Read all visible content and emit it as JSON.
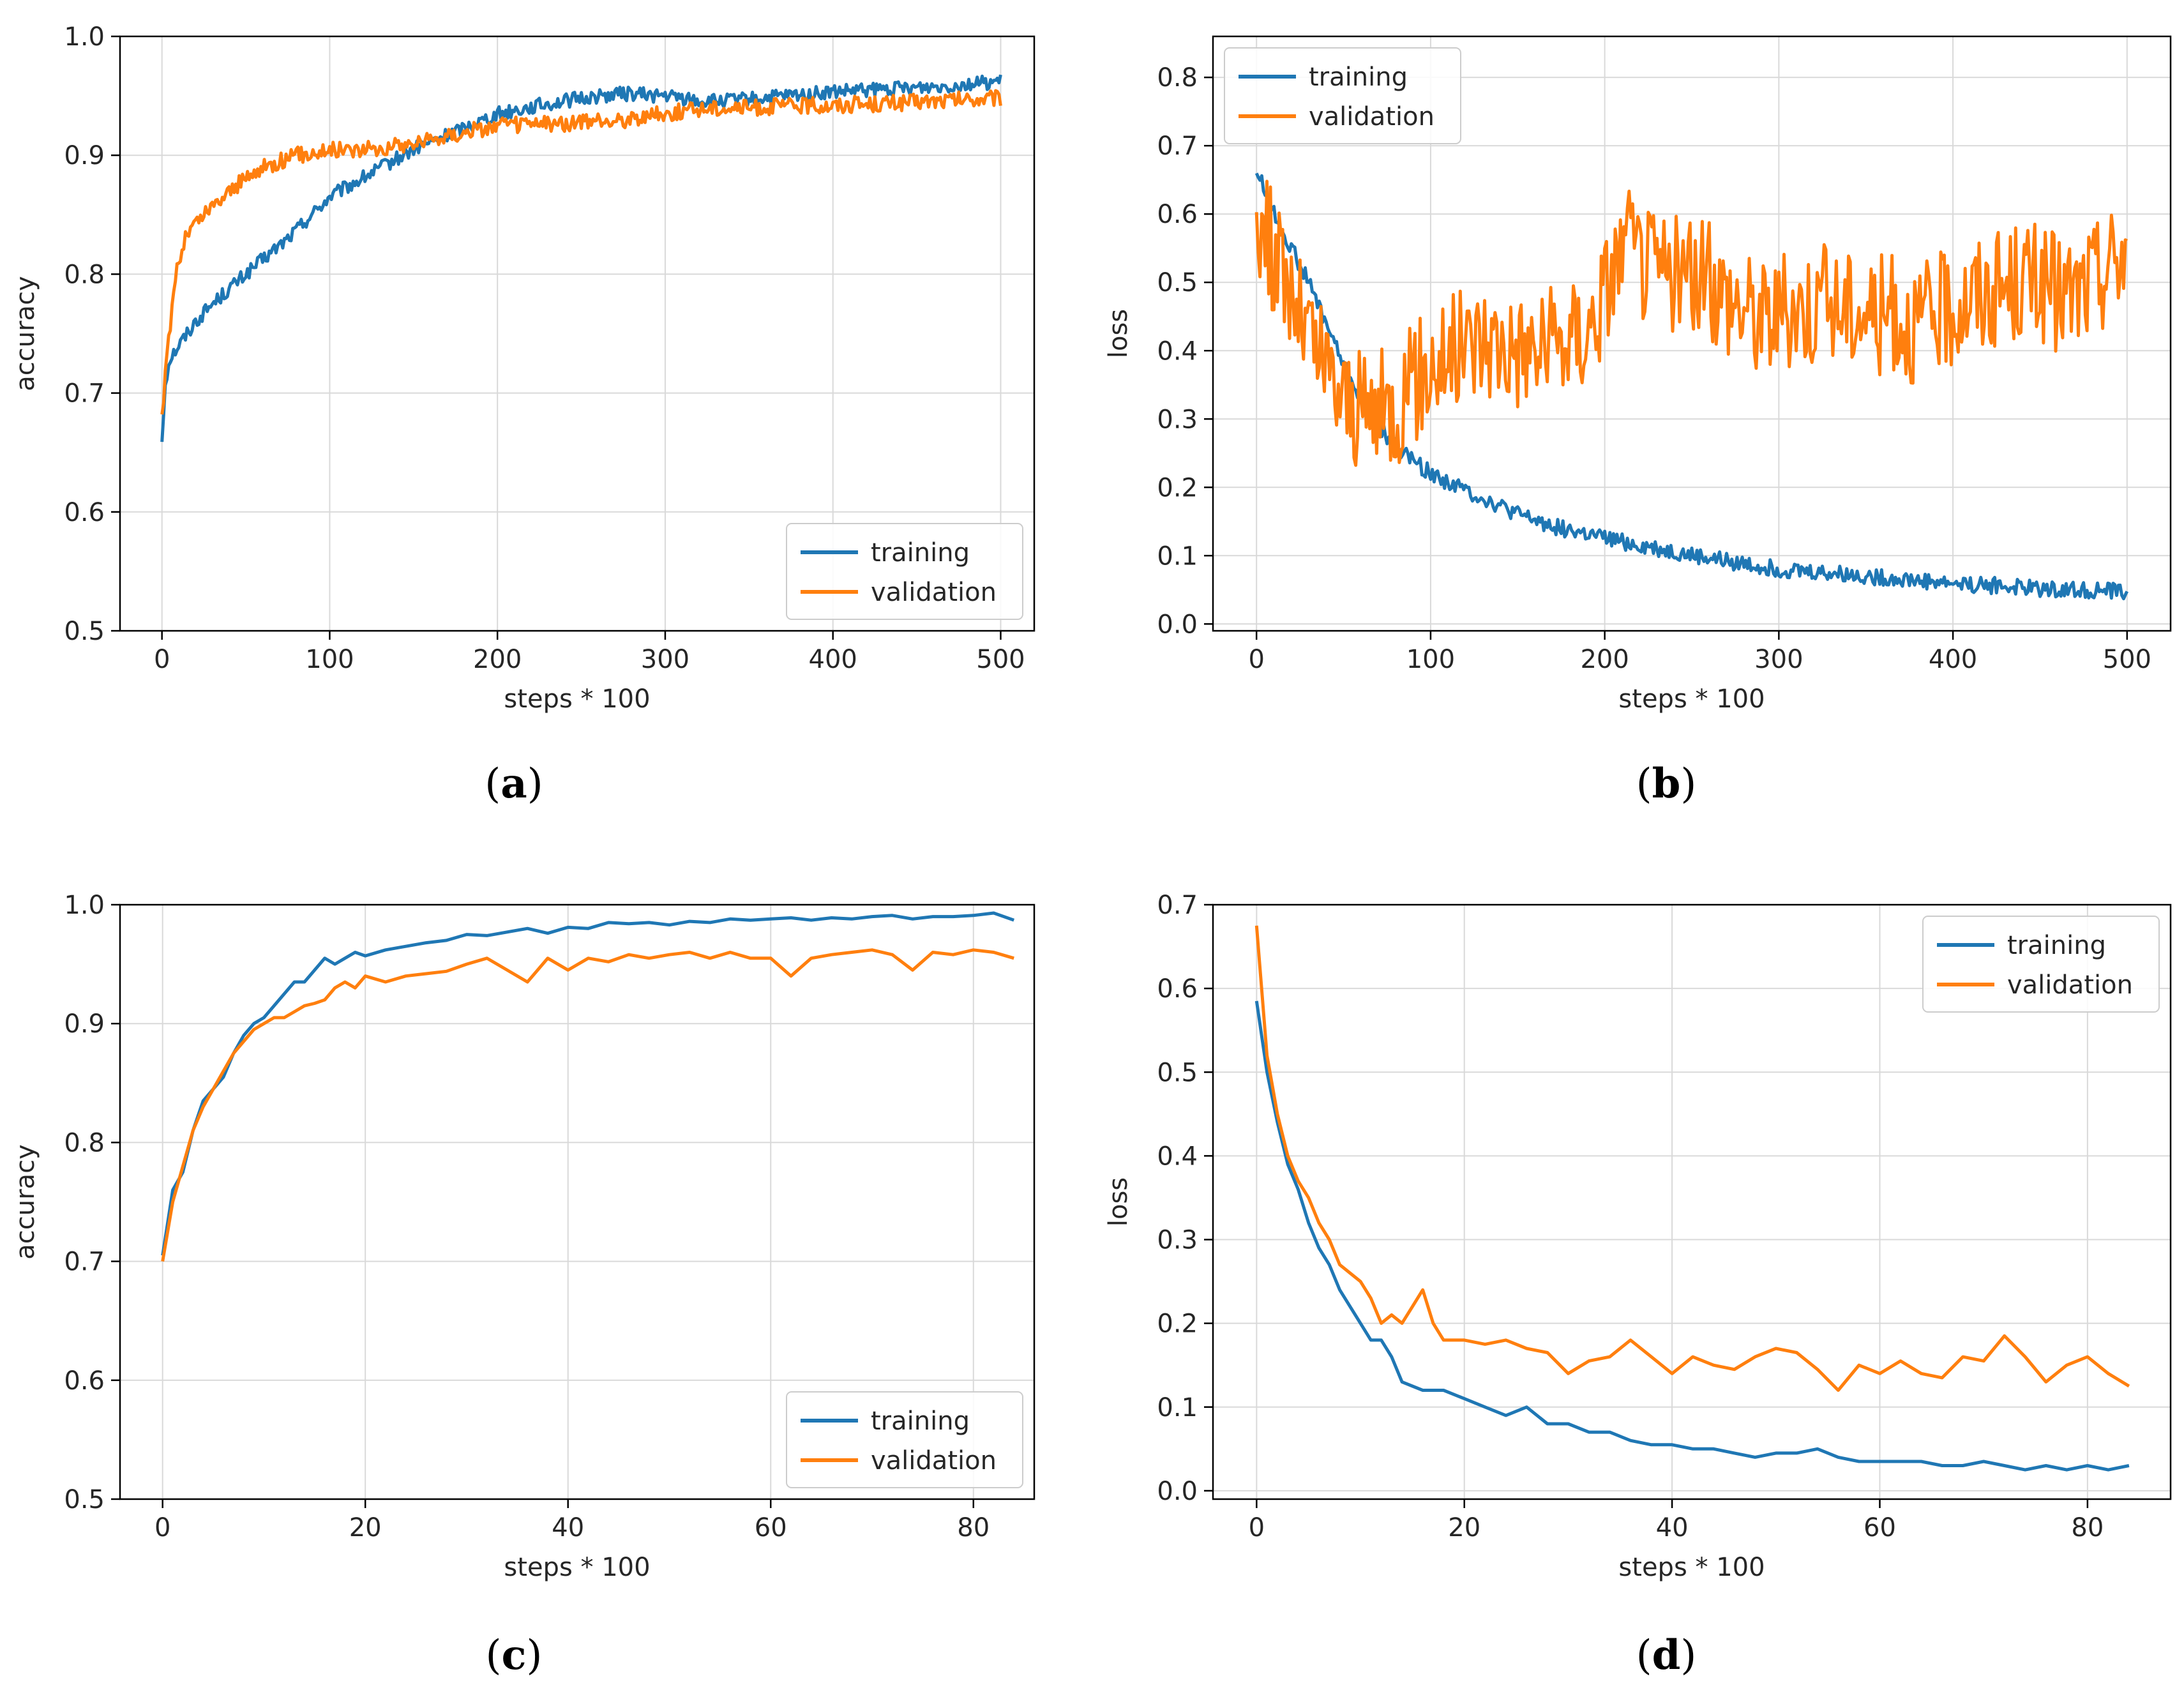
{
  "legend_labels": {
    "training": "training",
    "validation": "validation"
  },
  "colors": {
    "training": "#1f77b4",
    "validation": "#ff7f0e",
    "grid": "#d9d9d9",
    "axis": "#000000",
    "legend_border": "#cccccc"
  },
  "captions": {
    "a": "a",
    "b": "b",
    "c": "c",
    "d": "d"
  },
  "chart_data": [
    {
      "id": "a",
      "type": "line",
      "xlabel": "steps * 100",
      "ylabel": "accuracy",
      "xlim": [
        -25,
        520
      ],
      "ylim": [
        0.5,
        1.0
      ],
      "xticks": [
        0,
        100,
        200,
        300,
        400,
        500
      ],
      "yticks": [
        0.5,
        0.6,
        0.7,
        0.8,
        0.9,
        1.0
      ],
      "legend": "bottom-right",
      "series": [
        {
          "name": "training",
          "noise": 0.006,
          "x": [
            0,
            2,
            5,
            10,
            20,
            30,
            50,
            75,
            100,
            125,
            150,
            175,
            200,
            225,
            250,
            275,
            300,
            325,
            350,
            375,
            400,
            450,
            500
          ],
          "y": [
            0.66,
            0.71,
            0.73,
            0.74,
            0.76,
            0.775,
            0.8,
            0.83,
            0.865,
            0.885,
            0.905,
            0.92,
            0.935,
            0.942,
            0.948,
            0.952,
            0.95,
            0.945,
            0.947,
            0.95,
            0.953,
            0.957,
            0.962
          ]
        },
        {
          "name": "validation",
          "noise": 0.007,
          "x": [
            0,
            3,
            8,
            15,
            25,
            40,
            60,
            80,
            100,
            125,
            150,
            175,
            200,
            225,
            250,
            275,
            300,
            325,
            350,
            375,
            400,
            450,
            500
          ],
          "y": [
            0.68,
            0.73,
            0.8,
            0.835,
            0.85,
            0.87,
            0.89,
            0.9,
            0.905,
            0.905,
            0.91,
            0.918,
            0.925,
            0.926,
            0.927,
            0.93,
            0.935,
            0.94,
            0.94,
            0.942,
            0.942,
            0.945,
            0.948
          ]
        }
      ]
    },
    {
      "id": "b",
      "type": "line",
      "xlabel": "steps * 100",
      "ylabel": "loss",
      "xlim": [
        -25,
        525
      ],
      "ylim": [
        -0.01,
        0.86
      ],
      "xticks": [
        0,
        100,
        200,
        300,
        400,
        500
      ],
      "yticks": [
        0.0,
        0.1,
        0.2,
        0.3,
        0.4,
        0.5,
        0.6,
        0.7,
        0.8
      ],
      "legend": "top-left",
      "series": [
        {
          "name": "training",
          "noise": 0.012,
          "x": [
            0,
            10,
            20,
            30,
            40,
            50,
            60,
            70,
            80,
            100,
            125,
            150,
            175,
            200,
            250,
            300,
            350,
            400,
            450,
            500
          ],
          "y": [
            0.665,
            0.6,
            0.55,
            0.5,
            0.44,
            0.38,
            0.33,
            0.29,
            0.26,
            0.22,
            0.19,
            0.16,
            0.14,
            0.125,
            0.1,
            0.08,
            0.07,
            0.06,
            0.052,
            0.048
          ]
        },
        {
          "name": "validation",
          "noise": 0.09,
          "x": [
            0,
            10,
            20,
            30,
            40,
            50,
            60,
            80,
            100,
            130,
            160,
            190,
            210,
            230,
            260,
            290,
            320,
            350,
            380,
            410,
            440,
            470,
            500
          ],
          "y": [
            0.6,
            0.54,
            0.48,
            0.42,
            0.37,
            0.33,
            0.31,
            0.32,
            0.38,
            0.42,
            0.4,
            0.43,
            0.55,
            0.52,
            0.5,
            0.45,
            0.47,
            0.46,
            0.44,
            0.48,
            0.5,
            0.48,
            0.55
          ]
        }
      ]
    },
    {
      "id": "c",
      "type": "line",
      "xlabel": "steps * 100",
      "ylabel": "accuracy",
      "xlim": [
        -4.2,
        86
      ],
      "ylim": [
        0.5,
        1.0
      ],
      "xticks": [
        0,
        20,
        40,
        60,
        80
      ],
      "yticks": [
        0.5,
        0.6,
        0.7,
        0.8,
        0.9,
        1.0
      ],
      "legend": "bottom-right",
      "series": [
        {
          "name": "training",
          "noise": 0.0,
          "x": [
            0,
            1,
            2,
            3,
            4,
            5,
            6,
            7,
            8,
            9,
            10,
            11,
            12,
            13,
            14,
            15,
            16,
            17,
            18,
            19,
            20,
            22,
            24,
            26,
            28,
            30,
            32,
            34,
            36,
            38,
            40,
            42,
            44,
            46,
            48,
            50,
            52,
            54,
            56,
            58,
            60,
            62,
            64,
            66,
            68,
            70,
            72,
            74,
            76,
            78,
            80,
            82,
            84
          ],
          "y": [
            0.705,
            0.76,
            0.775,
            0.81,
            0.835,
            0.845,
            0.855,
            0.875,
            0.89,
            0.9,
            0.905,
            0.915,
            0.925,
            0.935,
            0.935,
            0.945,
            0.955,
            0.95,
            0.955,
            0.96,
            0.957,
            0.962,
            0.965,
            0.968,
            0.97,
            0.975,
            0.974,
            0.977,
            0.98,
            0.976,
            0.981,
            0.98,
            0.985,
            0.984,
            0.985,
            0.983,
            0.986,
            0.985,
            0.988,
            0.987,
            0.988,
            0.989,
            0.987,
            0.989,
            0.988,
            0.99,
            0.991,
            0.988,
            0.99,
            0.99,
            0.991,
            0.993,
            0.987
          ]
        },
        {
          "name": "validation",
          "noise": 0.0,
          "x": [
            0,
            1,
            2,
            3,
            4,
            5,
            6,
            7,
            8,
            9,
            10,
            11,
            12,
            13,
            14,
            15,
            16,
            17,
            18,
            19,
            20,
            22,
            24,
            26,
            28,
            30,
            32,
            34,
            36,
            38,
            40,
            42,
            44,
            46,
            48,
            50,
            52,
            54,
            56,
            58,
            60,
            62,
            64,
            66,
            68,
            70,
            72,
            74,
            76,
            78,
            80,
            82,
            84
          ],
          "y": [
            0.7,
            0.75,
            0.78,
            0.81,
            0.83,
            0.845,
            0.86,
            0.875,
            0.885,
            0.895,
            0.9,
            0.905,
            0.905,
            0.91,
            0.915,
            0.917,
            0.92,
            0.93,
            0.935,
            0.93,
            0.94,
            0.935,
            0.94,
            0.942,
            0.944,
            0.95,
            0.955,
            0.945,
            0.935,
            0.955,
            0.945,
            0.955,
            0.952,
            0.958,
            0.955,
            0.958,
            0.96,
            0.955,
            0.96,
            0.955,
            0.955,
            0.94,
            0.955,
            0.958,
            0.96,
            0.962,
            0.958,
            0.945,
            0.96,
            0.958,
            0.962,
            0.96,
            0.955
          ]
        }
      ]
    },
    {
      "id": "d",
      "type": "line",
      "xlabel": "steps * 100",
      "ylabel": "loss",
      "xlim": [
        -4.2,
        88
      ],
      "ylim": [
        -0.01,
        0.7
      ],
      "xticks": [
        0,
        20,
        40,
        60,
        80
      ],
      "yticks": [
        0.0,
        0.1,
        0.2,
        0.3,
        0.4,
        0.5,
        0.6,
        0.7
      ],
      "legend": "top-right",
      "series": [
        {
          "name": "training",
          "noise": 0.0,
          "x": [
            0,
            1,
            2,
            3,
            4,
            5,
            6,
            7,
            8,
            9,
            10,
            11,
            12,
            13,
            14,
            15,
            16,
            18,
            20,
            22,
            24,
            26,
            28,
            30,
            32,
            34,
            36,
            38,
            40,
            42,
            44,
            46,
            48,
            50,
            52,
            54,
            56,
            58,
            60,
            62,
            64,
            66,
            68,
            70,
            72,
            74,
            76,
            78,
            80,
            82,
            84
          ],
          "y": [
            0.585,
            0.5,
            0.44,
            0.39,
            0.36,
            0.32,
            0.29,
            0.27,
            0.24,
            0.22,
            0.2,
            0.18,
            0.18,
            0.16,
            0.13,
            0.125,
            0.12,
            0.12,
            0.11,
            0.1,
            0.09,
            0.1,
            0.08,
            0.08,
            0.07,
            0.07,
            0.06,
            0.055,
            0.055,
            0.05,
            0.05,
            0.045,
            0.04,
            0.045,
            0.045,
            0.05,
            0.04,
            0.035,
            0.035,
            0.035,
            0.035,
            0.03,
            0.03,
            0.035,
            0.03,
            0.025,
            0.03,
            0.025,
            0.03,
            0.025,
            0.03
          ]
        },
        {
          "name": "validation",
          "noise": 0.0,
          "x": [
            0,
            1,
            2,
            3,
            4,
            5,
            6,
            7,
            8,
            9,
            10,
            11,
            12,
            13,
            14,
            15,
            16,
            17,
            18,
            20,
            22,
            24,
            26,
            28,
            30,
            32,
            34,
            36,
            38,
            40,
            42,
            44,
            46,
            48,
            50,
            52,
            54,
            56,
            58,
            60,
            62,
            64,
            66,
            68,
            70,
            72,
            74,
            76,
            78,
            80,
            82,
            84
          ],
          "y": [
            0.675,
            0.52,
            0.45,
            0.4,
            0.37,
            0.35,
            0.32,
            0.3,
            0.27,
            0.26,
            0.25,
            0.23,
            0.2,
            0.21,
            0.2,
            0.22,
            0.24,
            0.2,
            0.18,
            0.18,
            0.175,
            0.18,
            0.17,
            0.165,
            0.14,
            0.155,
            0.16,
            0.18,
            0.16,
            0.14,
            0.16,
            0.15,
            0.145,
            0.16,
            0.17,
            0.165,
            0.145,
            0.12,
            0.15,
            0.14,
            0.155,
            0.14,
            0.135,
            0.16,
            0.155,
            0.185,
            0.16,
            0.13,
            0.15,
            0.16,
            0.14,
            0.125
          ]
        }
      ]
    }
  ]
}
